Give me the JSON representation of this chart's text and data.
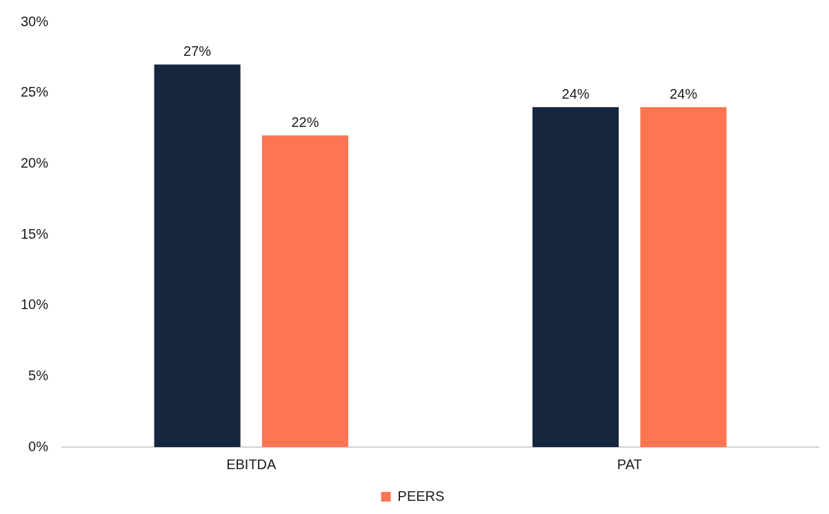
{
  "chart_data": {
    "type": "bar",
    "categories": [
      "EBITDA",
      "PAT"
    ],
    "series": [
      {
        "color": "#17263f",
        "values": [
          27,
          24
        ],
        "value_labels": [
          "27%",
          "24%"
        ]
      },
      {
        "name": "PEERS",
        "color": "#ff7552",
        "values": [
          22,
          24
        ],
        "value_labels": [
          "22%",
          "24%"
        ]
      }
    ],
    "ylim": [
      0,
      30
    ],
    "yticks": [
      {
        "value": 0,
        "label": "0%"
      },
      {
        "value": 5,
        "label": "5%"
      },
      {
        "value": 10,
        "label": "10%"
      },
      {
        "value": 15,
        "label": "15%"
      },
      {
        "value": 20,
        "label": "20%"
      },
      {
        "value": 25,
        "label": "25%"
      },
      {
        "value": 30,
        "label": "30%"
      }
    ],
    "grid": false,
    "legend": "bottom"
  }
}
